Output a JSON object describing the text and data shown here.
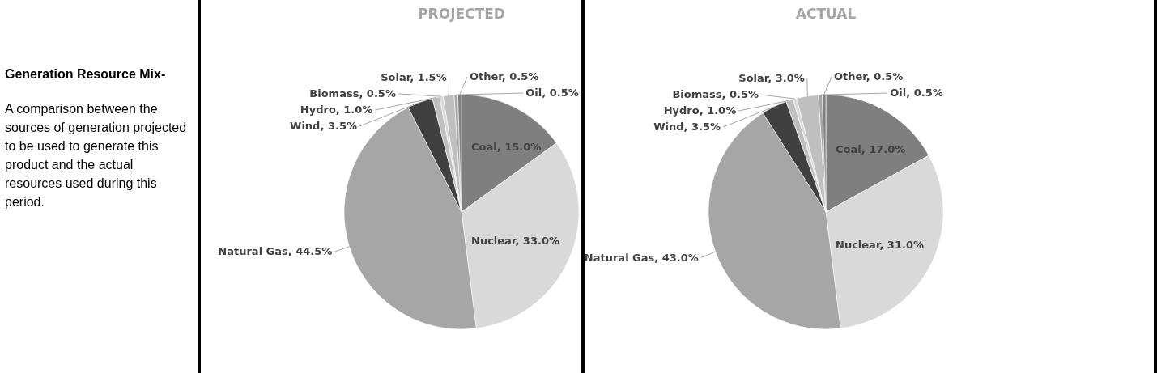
{
  "chart_data": [
    {
      "type": "other",
      "title": "Generation Resource Mix-",
      "annotations": [
        "A comparison between the sources of generation projected to be used to generate this product and the actual resources used during this period."
      ]
    },
    {
      "type": "pie",
      "title": "PROJECTED",
      "categories": [
        "Coal",
        "Nuclear",
        "Natural Gas",
        "Wind",
        "Hydro",
        "Biomass",
        "Solar",
        "Oil",
        "Other"
      ],
      "values": [
        15.0,
        33.0,
        44.5,
        3.5,
        1.0,
        0.5,
        1.5,
        0.5,
        0.5
      ],
      "value_labels": [
        "15.0%",
        "33.0%",
        "44.5%",
        "3.5%",
        "1.0%",
        "0.5%",
        "1.5%",
        "0.5%",
        "0.5%"
      ],
      "colors": [
        "#7f7f7f",
        "#d9d9d9",
        "#a6a6a6",
        "#404040",
        "#bfbfbf",
        "#d9d9d9",
        "#bfbfbf",
        "#a6a6a6",
        "#808080"
      ]
    },
    {
      "type": "pie",
      "title": "ACTUAL",
      "categories": [
        "Coal",
        "Nuclear",
        "Natural Gas",
        "Wind",
        "Hydro",
        "Biomass",
        "Solar",
        "Oil",
        "Other"
      ],
      "values": [
        17.0,
        31.0,
        43.0,
        3.5,
        1.0,
        0.5,
        3.0,
        0.5,
        0.5
      ],
      "value_labels": [
        "17.0%",
        "31.0%",
        "43.0%",
        "3.5%",
        "1.0%",
        "0.5%",
        "3.0%",
        "0.5%",
        "0.5%"
      ],
      "colors": [
        "#7f7f7f",
        "#d9d9d9",
        "#a6a6a6",
        "#404040",
        "#bfbfbf",
        "#d9d9d9",
        "#bfbfbf",
        "#a6a6a6",
        "#808080"
      ]
    }
  ]
}
